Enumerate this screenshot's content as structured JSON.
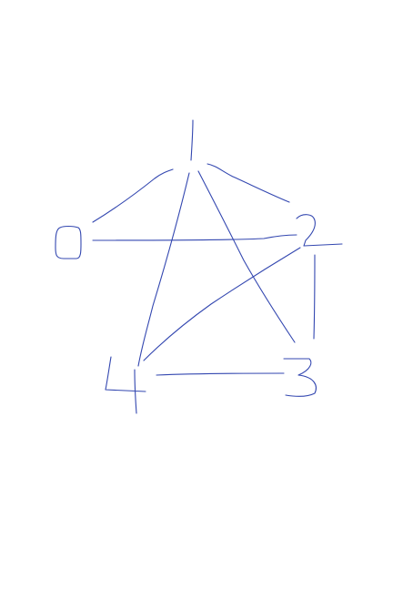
{
  "diagram": {
    "type": "hand-drawn-graph",
    "ink_color": "#3347b0",
    "background": "#ffffff",
    "nodes": [
      {
        "id": "0",
        "label": "0"
      },
      {
        "id": "1",
        "label": "1"
      },
      {
        "id": "2",
        "label": "2"
      },
      {
        "id": "3",
        "label": "3"
      },
      {
        "id": "4",
        "label": "4"
      }
    ],
    "edges": [
      {
        "from": "0",
        "to": "1"
      },
      {
        "from": "0",
        "to": "2"
      },
      {
        "from": "1",
        "to": "2"
      },
      {
        "from": "1",
        "to": "3"
      },
      {
        "from": "1",
        "to": "4"
      },
      {
        "from": "2",
        "to": "3"
      },
      {
        "from": "2",
        "to": "4"
      },
      {
        "from": "3",
        "to": "4"
      }
    ]
  }
}
